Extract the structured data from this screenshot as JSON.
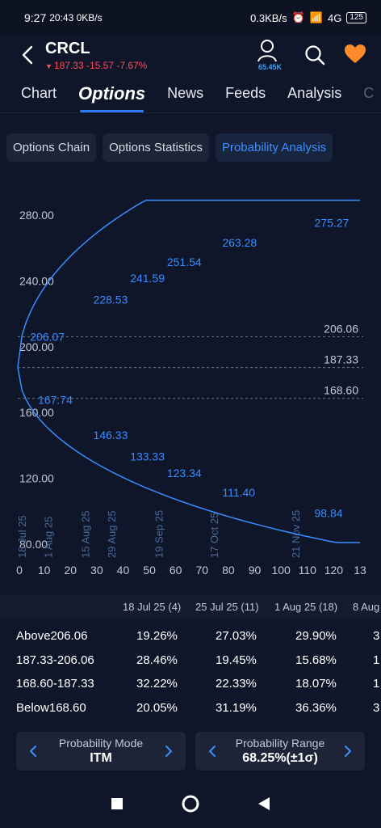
{
  "status": {
    "time": "9:27",
    "notif_text": "20:43 0KB/s",
    "net_speed": "0.3KB/s",
    "signal": "4G",
    "battery": "125"
  },
  "header": {
    "ticker": "CRCL",
    "price_line": "187.33 -15.57 -7.67%",
    "follower_count": "65.45K"
  },
  "tabs": [
    "Chart",
    "Options",
    "News",
    "Feeds",
    "Analysis",
    "C"
  ],
  "subtabs": [
    "Options Chain",
    "Options Statistics",
    "Probability Analysis"
  ],
  "chart_data": {
    "type": "line",
    "y_ticks": [
      "280.00",
      "240.00",
      "200.00",
      "160.00",
      "120.00",
      "80.00"
    ],
    "x_ticks": [
      "0",
      "10",
      "20",
      "30",
      "40",
      "50",
      "60",
      "70",
      "80",
      "90",
      "100",
      "110",
      "120",
      "13"
    ],
    "date_labels": [
      "18 Jul 25",
      "1 Aug 25",
      "15 Aug 25",
      "29 Aug 25",
      "19 Sep 25",
      "17 Oct 25",
      "21 Nov 25"
    ],
    "ref_lines": [
      {
        "value": 206.06,
        "label": "206.06"
      },
      {
        "value": 187.33,
        "label": "187.33"
      },
      {
        "value": 168.6,
        "label": "168.60"
      }
    ],
    "upper_labels": [
      {
        "x": 1,
        "y": 206.07,
        "label": "206.07"
      },
      {
        "x": 25,
        "y": 228.53,
        "label": "228.53"
      },
      {
        "x": 39,
        "y": 241.59,
        "label": "241.59"
      },
      {
        "x": 53,
        "y": 251.54,
        "label": "251.54"
      },
      {
        "x": 74,
        "y": 263.28,
        "label": "263.28"
      },
      {
        "x": 109,
        "y": 275.27,
        "label": "275.27"
      }
    ],
    "lower_labels": [
      {
        "x": 4,
        "y": 167.74,
        "label": "167.74"
      },
      {
        "x": 25,
        "y": 146.33,
        "label": "146.33"
      },
      {
        "x": 39,
        "y": 133.33,
        "label": "133.33"
      },
      {
        "x": 53,
        "y": 123.34,
        "label": "123.34"
      },
      {
        "x": 74,
        "y": 111.4,
        "label": "111.40"
      },
      {
        "x": 109,
        "y": 98.84,
        "label": "98.84"
      }
    ],
    "xlim": [
      0,
      130
    ],
    "ylim": [
      78,
      290
    ]
  },
  "table": {
    "columns": [
      "18 Jul 25 (4)",
      "25 Jul 25 (11)",
      "1 Aug 25 (18)",
      "8 Aug"
    ],
    "rows": [
      {
        "label": "Above206.06",
        "values": [
          "19.26%",
          "27.03%",
          "29.90%",
          "3"
        ]
      },
      {
        "label": "187.33-206.06",
        "values": [
          "28.46%",
          "19.45%",
          "15.68%",
          "1"
        ]
      },
      {
        "label": "168.60-187.33",
        "values": [
          "32.22%",
          "22.33%",
          "18.07%",
          "1"
        ]
      },
      {
        "label": "Below168.60",
        "values": [
          "20.05%",
          "31.19%",
          "36.36%",
          "3"
        ]
      }
    ]
  },
  "controls": {
    "mode_title": "Probability Mode",
    "mode_value": "ITM",
    "range_title": "Probability Range",
    "range_value": "68.25%(±1σ)"
  },
  "colors": {
    "accent": "#3e8dff",
    "curve": "#3a8cff",
    "down": "#ff4d5a",
    "heart": "#ff8a2b"
  }
}
